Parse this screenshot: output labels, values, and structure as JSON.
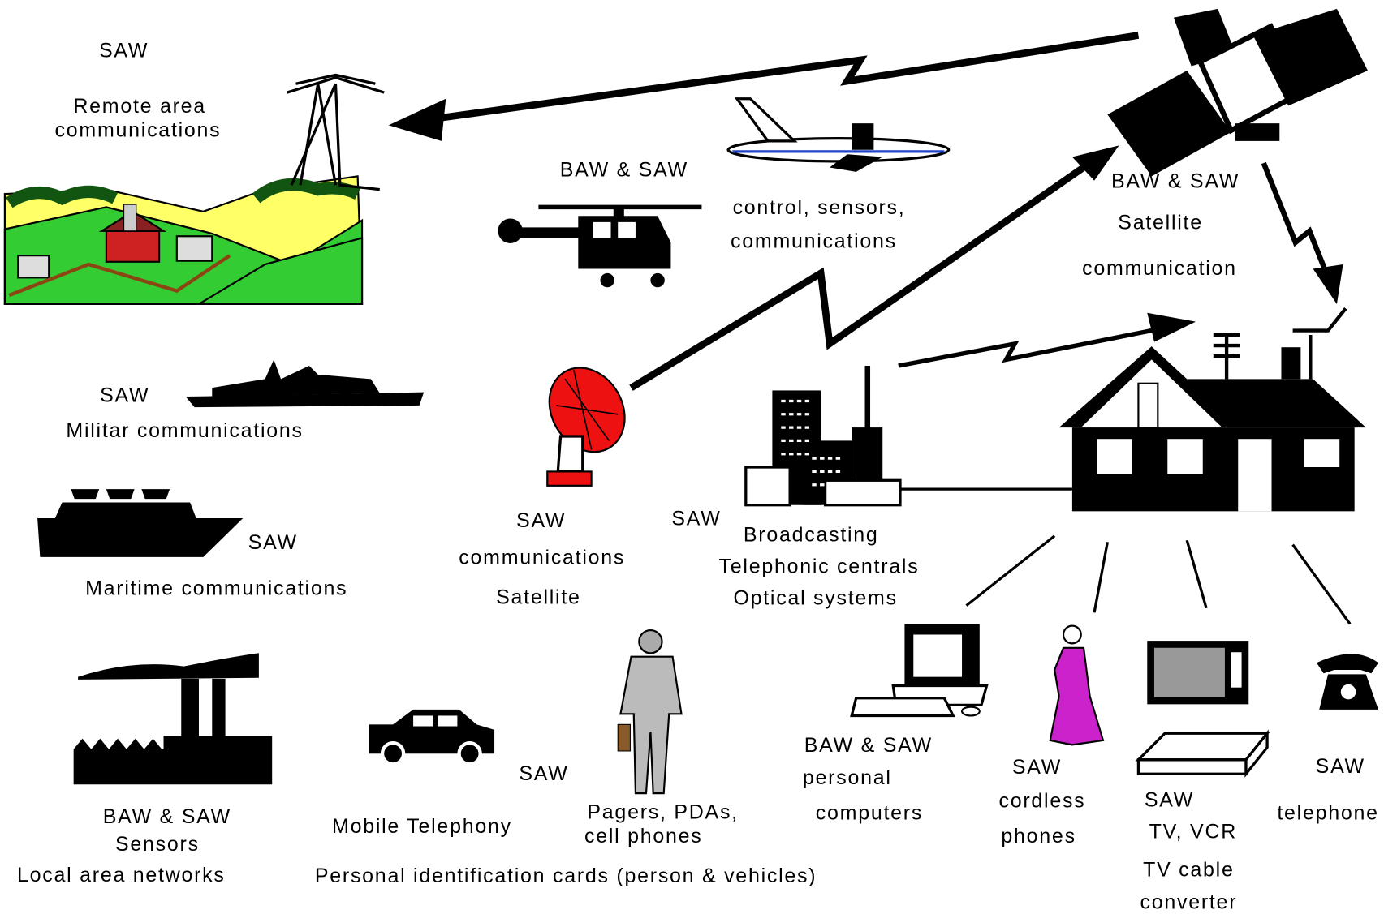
{
  "labels": [
    {
      "lines": [
        "SAW"
      ]
    },
    {
      "lines": [
        "Remote area",
        "communications"
      ]
    },
    {
      "lines": [
        "BAW & SAW"
      ]
    },
    {
      "lines": [
        "control, sensors,",
        "communications"
      ]
    },
    {
      "lines": [
        "BAW & SAW",
        "Satellite",
        "communication"
      ]
    },
    {
      "lines": [
        "SAW",
        "Militar communications"
      ]
    },
    {
      "lines": [
        "SAW"
      ]
    },
    {
      "lines": [
        "Maritime communications"
      ]
    },
    {
      "lines": [
        "SAW",
        "communications",
        "Satellite"
      ]
    },
    {
      "lines": [
        "SAW"
      ]
    },
    {
      "lines": [
        "Broadcasting",
        "Telephonic centrals",
        "Optical systems"
      ]
    },
    {
      "lines": [
        "BAW & SAW",
        "Sensors",
        "Local area networks"
      ]
    },
    {
      "lines": [
        "Mobile Telephony"
      ]
    },
    {
      "lines": [
        "SAW"
      ]
    },
    {
      "lines": [
        "Pagers, PDAs,",
        "cell phones"
      ]
    },
    {
      "lines": [
        "Personal identification cards (person & vehicles)"
      ]
    },
    {
      "lines": [
        "BAW & SAW",
        "personal",
        "computers"
      ]
    },
    {
      "lines": [
        "SAW",
        "cordless",
        "phones"
      ]
    },
    {
      "lines": [
        "SAW",
        "TV,  VCR",
        "TV cable",
        "converter"
      ]
    },
    {
      "lines": [
        "SAW",
        "telephone"
      ]
    }
  ]
}
